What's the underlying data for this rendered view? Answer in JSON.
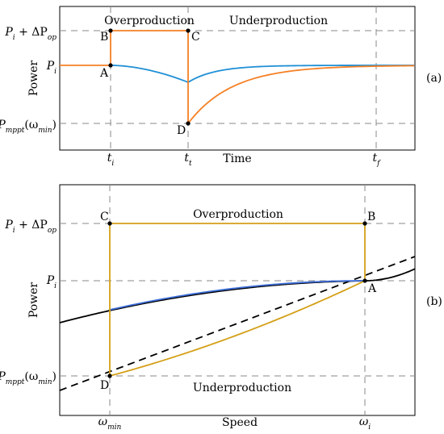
{
  "chart_data": [
    {
      "id": "a",
      "type": "line",
      "panel_label": "(a)",
      "xlabel": "Time",
      "ylabel": "Power",
      "x_ticks": [
        {
          "key": "ti",
          "base": "t",
          "sub": "i"
        },
        {
          "key": "tt",
          "base": "t",
          "sub": "t"
        },
        {
          "key": "tf",
          "base": "t",
          "sub": "f"
        }
      ],
      "y_ticks": [
        {
          "key": "pip",
          "base": "P",
          "sub": "i",
          "tail": " + ΔP",
          "tail_sub": "op"
        },
        {
          "key": "pi",
          "base": "P",
          "sub": "i",
          "tail": "",
          "tail_sub": ""
        },
        {
          "key": "pm",
          "base": "P",
          "sub": "mppt",
          "tail": "(ω",
          "tail_sub": "min",
          "tail2": ")"
        }
      ],
      "region_labels": [
        "Overproduction",
        "Underproduction"
      ],
      "point_labels": [
        "A",
        "B",
        "C",
        "D"
      ],
      "colors": {
        "orange": "#f58025",
        "blue": "#1f8fd6",
        "grid": "#8a8a8a"
      },
      "series": [
        {
          "key": "orange",
          "color": "#f58025",
          "description": "power step then recovery"
        },
        {
          "key": "blue",
          "color": "#1f8fd6",
          "description": "power dip and recovery"
        }
      ]
    },
    {
      "id": "b",
      "type": "line",
      "panel_label": "(b)",
      "xlabel": "Speed",
      "ylabel": "Power",
      "x_ticks": [
        {
          "key": "wmin",
          "base": "ω",
          "sub": "min"
        },
        {
          "key": "wi",
          "base": "ω",
          "sub": "i"
        }
      ],
      "y_ticks": [
        {
          "key": "pip",
          "base": "P",
          "sub": "i",
          "tail": " + ΔP",
          "tail_sub": "op"
        },
        {
          "key": "pi",
          "base": "P",
          "sub": "i",
          "tail": "",
          "tail_sub": ""
        },
        {
          "key": "pm",
          "base": "P",
          "sub": "mppt",
          "tail": "(ω",
          "tail_sub": "min",
          "tail2": ")"
        }
      ],
      "region_labels": [
        "Overproduction",
        "Underproduction"
      ],
      "point_labels": [
        "A",
        "B",
        "C",
        "D"
      ],
      "colors": {
        "gold": "#d4a017",
        "blue": "#3f6fd8",
        "black": "#000000",
        "grid": "#8a8a8a"
      },
      "series": [
        {
          "key": "gold",
          "color": "#d4a017"
        },
        {
          "key": "blue",
          "color": "#3f6fd8"
        },
        {
          "key": "black",
          "color": "#000000"
        }
      ]
    }
  ]
}
